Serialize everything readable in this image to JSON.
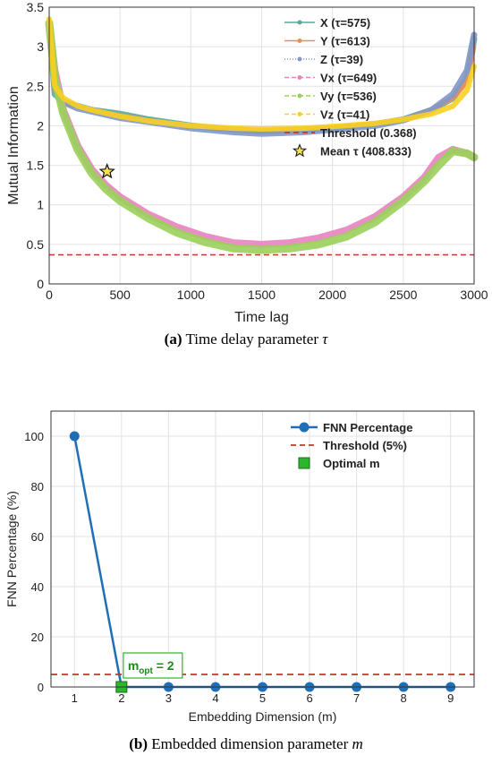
{
  "chart_data": [
    {
      "type": "line",
      "xlabel": "Time lag",
      "ylabel": "Mutual Information",
      "xlim": [
        0,
        3000
      ],
      "ylim": [
        0,
        3.5
      ],
      "xticks": [
        "0",
        "500",
        "1000",
        "1500",
        "2000",
        "2500",
        "3000"
      ],
      "yticks": [
        "0",
        "0.5",
        "1",
        "1.5",
        "2",
        "2.5",
        "3",
        "3.5"
      ],
      "legend_position": "top-right",
      "grid": true,
      "series": [
        {
          "name": "X (τ=575)",
          "color": "#5aa89a",
          "x": [
            0,
            40,
            100,
            200,
            300,
            500,
            700,
            1000,
            1300,
            1500,
            1800,
            2000,
            2300,
            2500,
            2700,
            2850,
            2950,
            3000
          ],
          "y": [
            3.3,
            2.4,
            2.3,
            2.25,
            2.2,
            2.15,
            2.08,
            2.0,
            1.95,
            1.93,
            1.95,
            1.97,
            2.02,
            2.08,
            2.2,
            2.35,
            2.6,
            3.1
          ]
        },
        {
          "name": "Y (τ=613)",
          "color": "#f08a5d",
          "x": [
            0,
            40,
            100,
            200,
            300,
            500,
            700,
            1000,
            1300,
            1500,
            1800,
            2000,
            2300,
            2500,
            2700,
            2850,
            2950,
            3000
          ],
          "y": [
            3.3,
            2.45,
            2.32,
            2.25,
            2.2,
            2.13,
            2.07,
            2.0,
            1.96,
            1.94,
            1.96,
            1.98,
            2.03,
            2.08,
            2.2,
            2.35,
            2.55,
            3.0
          ]
        },
        {
          "name": "Z (τ=39)",
          "color": "#8398c8",
          "x": [
            0,
            40,
            100,
            200,
            300,
            500,
            700,
            1000,
            1300,
            1500,
            1800,
            2000,
            2300,
            2500,
            2700,
            2850,
            2950,
            3000
          ],
          "y": [
            3.3,
            2.5,
            2.3,
            2.22,
            2.18,
            2.1,
            2.05,
            1.97,
            1.92,
            1.9,
            1.92,
            1.95,
            2.0,
            2.07,
            2.2,
            2.4,
            2.7,
            3.15
          ]
        },
        {
          "name": "Vx (τ=649)",
          "color": "#e883bf",
          "x": [
            0,
            40,
            100,
            200,
            300,
            400,
            500,
            700,
            900,
            1100,
            1300,
            1500,
            1700,
            1900,
            2100,
            2300,
            2500,
            2650,
            2750,
            2850,
            2950,
            3000
          ],
          "y": [
            3.3,
            2.7,
            2.2,
            1.75,
            1.45,
            1.25,
            1.1,
            0.88,
            0.72,
            0.6,
            0.52,
            0.5,
            0.52,
            0.58,
            0.68,
            0.85,
            1.1,
            1.35,
            1.6,
            1.7,
            1.65,
            1.6
          ]
        },
        {
          "name": "Vy (τ=536)",
          "color": "#9ad05a",
          "x": [
            0,
            40,
            100,
            200,
            300,
            400,
            500,
            700,
            900,
            1100,
            1300,
            1500,
            1700,
            1900,
            2100,
            2300,
            2500,
            2650,
            2750,
            2850,
            2950,
            3000
          ],
          "y": [
            3.3,
            2.6,
            2.15,
            1.7,
            1.4,
            1.2,
            1.05,
            0.83,
            0.65,
            0.53,
            0.45,
            0.43,
            0.45,
            0.5,
            0.6,
            0.78,
            1.05,
            1.3,
            1.5,
            1.68,
            1.65,
            1.6
          ]
        },
        {
          "name": "Vz (τ=41)",
          "color": "#f8d020",
          "x": [
            0,
            40,
            100,
            200,
            300,
            500,
            700,
            1000,
            1300,
            1500,
            1800,
            2000,
            2300,
            2500,
            2700,
            2850,
            2950,
            3000
          ],
          "y": [
            3.35,
            2.5,
            2.35,
            2.25,
            2.2,
            2.12,
            2.06,
            2.0,
            1.97,
            1.96,
            1.97,
            1.99,
            2.03,
            2.08,
            2.15,
            2.25,
            2.45,
            2.75
          ]
        }
      ],
      "threshold": {
        "name": "Threshold (0.368)",
        "value": 0.368,
        "color": "#c0392b"
      },
      "mean_marker": {
        "name": "Mean τ (408.833)",
        "x": 408.833,
        "y": 1.42,
        "color": "#f5e050"
      },
      "caption": {
        "label": "(a)",
        "text": "Time delay parameter ",
        "symbol": "τ"
      }
    },
    {
      "type": "line",
      "xlabel": "Embedding Dimension (m)",
      "ylabel": "FNN Percentage (%)",
      "xlim": [
        0.5,
        9.5
      ],
      "ylim": [
        0,
        110
      ],
      "xticks": [
        "1",
        "2",
        "3",
        "4",
        "5",
        "6",
        "7",
        "8",
        "9"
      ],
      "yticks": [
        "0",
        "20",
        "40",
        "60",
        "80",
        "100"
      ],
      "legend_position": "top-right",
      "grid": true,
      "series": [
        {
          "name": "FNN Percentage",
          "color": "#1f6fb8",
          "x": [
            1,
            2,
            3,
            4,
            5,
            6,
            7,
            8,
            9
          ],
          "y": [
            100,
            0,
            0,
            0,
            0,
            0,
            0,
            0,
            0
          ]
        }
      ],
      "threshold": {
        "name": "Threshold (5%)",
        "value": 5,
        "color": "#c0392b"
      },
      "optimal": {
        "name": "Optimal m",
        "x": 2,
        "y": 0,
        "color": "#2db52d"
      },
      "annotation": {
        "prefix": "m",
        "subscript": "opt",
        "suffix": " = 2"
      },
      "caption": {
        "label": "(b)",
        "text": "Embedded dimension parameter ",
        "symbol": "m"
      }
    }
  ]
}
